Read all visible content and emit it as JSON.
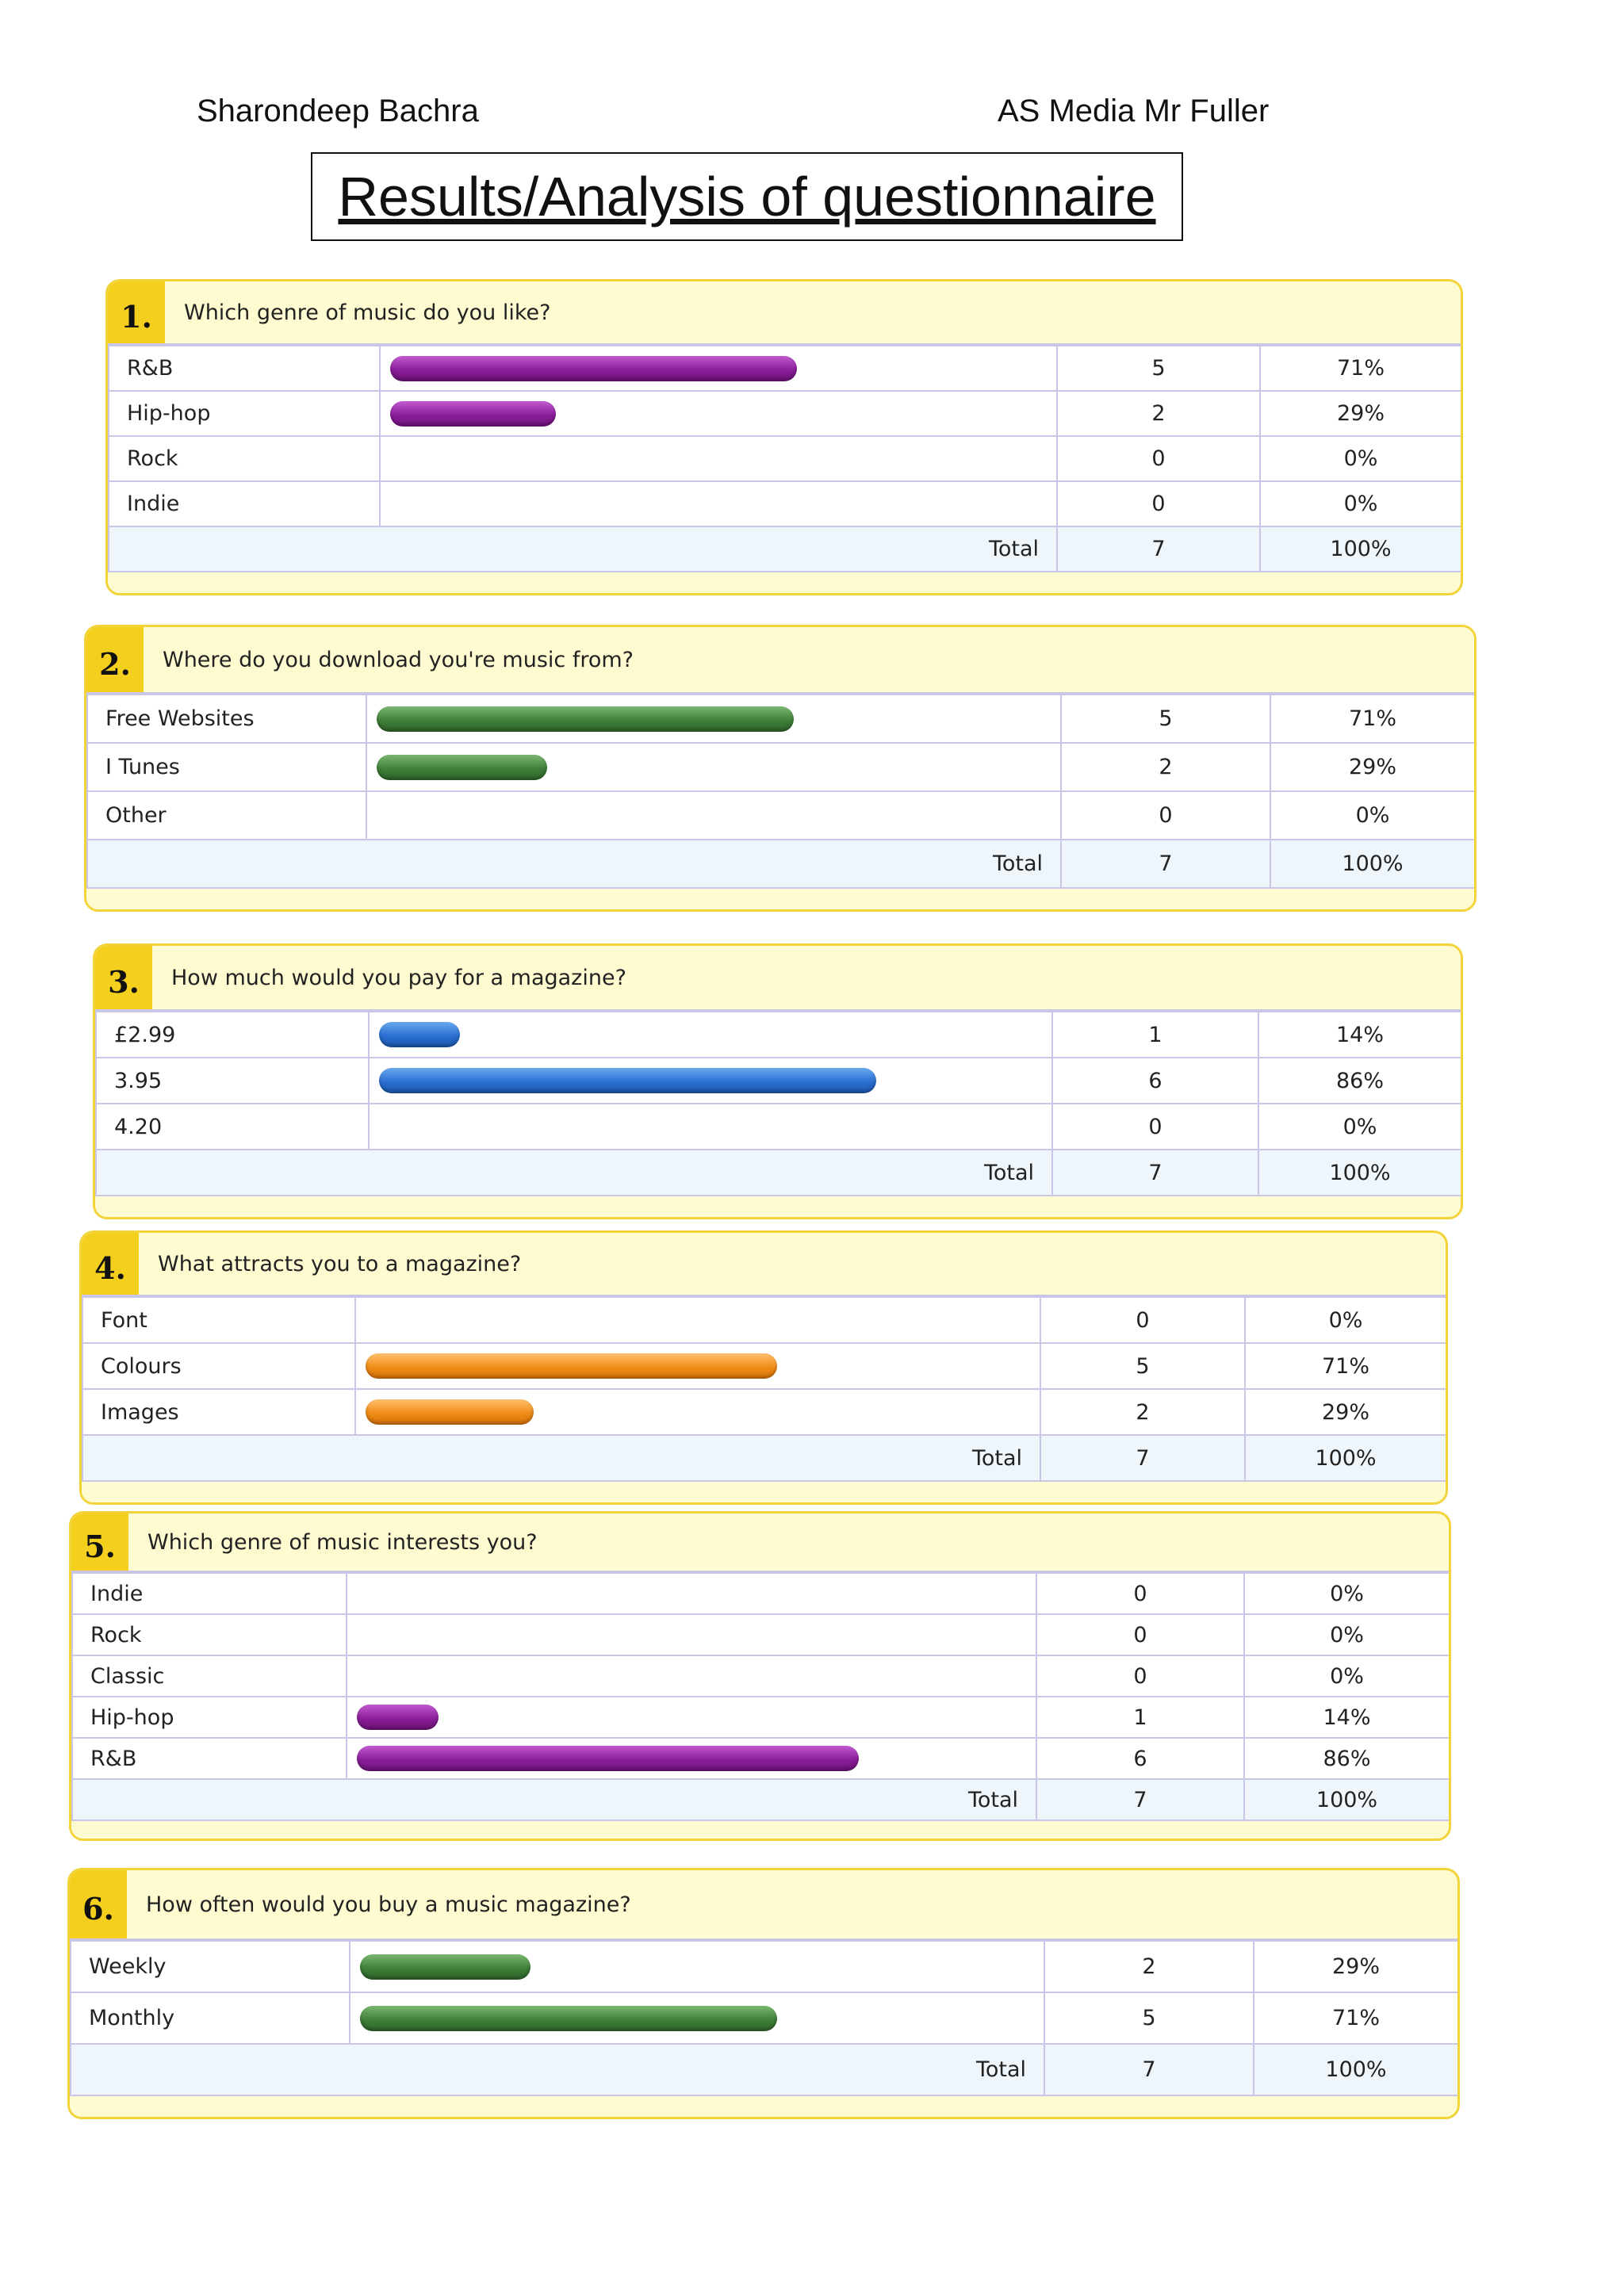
{
  "header": {
    "author": "Sharondeep Bachra",
    "course": "AS Media Mr Fuller",
    "title": "Results/Analysis of questionnaire"
  },
  "questions": [
    {
      "number": "1.",
      "text": "Which genre of music do you like?",
      "bar_color": "purple",
      "rows": [
        {
          "label": "R&B",
          "count": "5",
          "percent": "71%",
          "fraction": 0.71
        },
        {
          "label": "Hip-hop",
          "count": "2",
          "percent": "29%",
          "fraction": 0.29
        },
        {
          "label": "Rock",
          "count": "0",
          "percent": "0%",
          "fraction": 0
        },
        {
          "label": "Indie",
          "count": "0",
          "percent": "0%",
          "fraction": 0
        }
      ],
      "total_label": "Total",
      "total_count": "7",
      "total_percent": "100%"
    },
    {
      "number": "2.",
      "text": "Where do you download you're music from?",
      "bar_color": "green",
      "rows": [
        {
          "label": "Free Websites",
          "count": "5",
          "percent": "71%",
          "fraction": 0.71
        },
        {
          "label": "I Tunes",
          "count": "2",
          "percent": "29%",
          "fraction": 0.29
        },
        {
          "label": "Other",
          "count": "0",
          "percent": "0%",
          "fraction": 0
        }
      ],
      "total_label": "Total",
      "total_count": "7",
      "total_percent": "100%"
    },
    {
      "number": "3.",
      "text": "How much would you pay for a magazine?",
      "bar_color": "blue",
      "rows": [
        {
          "label": "£2.99",
          "count": "1",
          "percent": "14%",
          "fraction": 0.14
        },
        {
          "label": "3.95",
          "count": "6",
          "percent": "86%",
          "fraction": 0.86
        },
        {
          "label": "4.20",
          "count": "0",
          "percent": "0%",
          "fraction": 0
        }
      ],
      "total_label": "Total",
      "total_count": "7",
      "total_percent": "100%"
    },
    {
      "number": "4.",
      "text": "What attracts you to a magazine?",
      "bar_color": "orange",
      "rows": [
        {
          "label": "Font",
          "count": "0",
          "percent": "0%",
          "fraction": 0
        },
        {
          "label": "Colours",
          "count": "5",
          "percent": "71%",
          "fraction": 0.71
        },
        {
          "label": "Images",
          "count": "2",
          "percent": "29%",
          "fraction": 0.29
        }
      ],
      "total_label": "Total",
      "total_count": "7",
      "total_percent": "100%"
    },
    {
      "number": "5.",
      "text": "Which genre of music interests you?",
      "bar_color": "purple",
      "rows": [
        {
          "label": "Indie",
          "count": "0",
          "percent": "0%",
          "fraction": 0
        },
        {
          "label": "Rock",
          "count": "0",
          "percent": "0%",
          "fraction": 0
        },
        {
          "label": "Classic",
          "count": "0",
          "percent": "0%",
          "fraction": 0
        },
        {
          "label": "Hip-hop",
          "count": "1",
          "percent": "14%",
          "fraction": 0.14
        },
        {
          "label": "R&B",
          "count": "6",
          "percent": "86%",
          "fraction": 0.86
        }
      ],
      "total_label": "Total",
      "total_count": "7",
      "total_percent": "100%"
    },
    {
      "number": "6.",
      "text": "How often would you buy a music magazine?",
      "bar_color": "green",
      "rows": [
        {
          "label": "Weekly",
          "count": "2",
          "percent": "29%",
          "fraction": 0.29
        },
        {
          "label": "Monthly",
          "count": "5",
          "percent": "71%",
          "fraction": 0.71
        }
      ],
      "total_label": "Total",
      "total_count": "7",
      "total_percent": "100%"
    }
  ]
}
